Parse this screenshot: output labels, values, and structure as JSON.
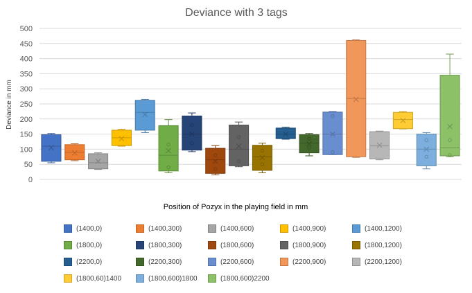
{
  "chart_data": {
    "type": "box",
    "title": "Deviance with 3 tags",
    "xlabel": "Position of Pozyx in the playing field in mm",
    "ylabel": "Deviance in mm",
    "ylim": [
      0,
      500
    ],
    "yticks": [
      0,
      50,
      100,
      150,
      200,
      250,
      300,
      350,
      400,
      450,
      500
    ],
    "grid": true,
    "legend_position": "bottom",
    "series": [
      {
        "name": "(1400,0)",
        "color": "#4472C4",
        "whisker_low": 55,
        "q1": 60,
        "median": 110,
        "q3": 148,
        "whisker_high": 152,
        "mean": 105,
        "points": []
      },
      {
        "name": "(1400,300)",
        "color": "#ED7D31",
        "whisker_low": 62,
        "q1": 65,
        "median": 90,
        "q3": 115,
        "whisker_high": 118,
        "mean": 88,
        "points": []
      },
      {
        "name": "(1400,600)",
        "color": "#A5A5A5",
        "whisker_low": 33,
        "q1": 35,
        "median": 55,
        "q3": 85,
        "whisker_high": 88,
        "mean": 60,
        "points": []
      },
      {
        "name": "(1400,900)",
        "color": "#FFC000",
        "whisker_low": 110,
        "q1": 112,
        "median": 138,
        "q3": 163,
        "whisker_high": 166,
        "mean": 135,
        "points": []
      },
      {
        "name": "(1400,1200)",
        "color": "#5B9BD5",
        "whisker_low": 155,
        "q1": 163,
        "median": 222,
        "q3": 262,
        "whisker_high": 265,
        "mean": 215,
        "points": []
      },
      {
        "name": "(1800,0)",
        "color": "#70AD47",
        "whisker_low": 22,
        "q1": 28,
        "median": 80,
        "q3": 178,
        "whisker_high": 198,
        "mean": 95,
        "points": [
          115,
          40
        ]
      },
      {
        "name": "(1800,300)",
        "color": "#264478",
        "whisker_low": 92,
        "q1": 97,
        "median": 150,
        "q3": 210,
        "whisker_high": 220,
        "mean": 150,
        "points": [
          180,
          120
        ]
      },
      {
        "name": "(1800,600)",
        "color": "#9E480E",
        "whisker_low": 15,
        "q1": 20,
        "median": 65,
        "q3": 103,
        "whisker_high": 112,
        "mean": 60,
        "points": [
          80,
          35
        ]
      },
      {
        "name": "(1800,900)",
        "color": "#636363",
        "whisker_low": 42,
        "q1": 45,
        "median": 100,
        "q3": 180,
        "whisker_high": 190,
        "mean": 110,
        "points": [
          140,
          60
        ]
      },
      {
        "name": "(1800,1200)",
        "color": "#997300",
        "whisker_low": 22,
        "q1": 30,
        "median": 75,
        "q3": 113,
        "whisker_high": 120,
        "mean": 72,
        "points": [
          95,
          50
        ]
      },
      {
        "name": "(2200,0)",
        "color": "#255E91",
        "whisker_low": 133,
        "q1": 135,
        "median": 150,
        "q3": 170,
        "whisker_high": 173,
        "mean": 150,
        "points": []
      },
      {
        "name": "(2200,300)",
        "color": "#43682B",
        "whisker_low": 78,
        "q1": 88,
        "median": 120,
        "q3": 148,
        "whisker_high": 152,
        "mean": 118,
        "points": [
          135,
          105
        ]
      },
      {
        "name": "(2200,600)",
        "color": "#698ED0",
        "whisker_low": 82,
        "q1": 82,
        "median": 150,
        "q3": 223,
        "whisker_high": 225,
        "mean": 150,
        "points": [
          210,
          90
        ]
      },
      {
        "name": "(2200,900)",
        "color": "#F1975A",
        "whisker_low": 73,
        "q1": 75,
        "median": 268,
        "q3": 460,
        "whisker_high": 462,
        "mean": 265,
        "points": []
      },
      {
        "name": "(2200,1200)",
        "color": "#B7B7B7",
        "whisker_low": 65,
        "q1": 68,
        "median": 112,
        "q3": 158,
        "whisker_high": 160,
        "mean": 113,
        "points": []
      },
      {
        "name": "(1800,60)1400",
        "color": "#FFCD33",
        "whisker_low": 167,
        "q1": 168,
        "median": 198,
        "q3": 222,
        "whisker_high": 225,
        "mean": 195,
        "points": []
      },
      {
        "name": "(1800,600)1800",
        "color": "#7CAFDD",
        "whisker_low": 35,
        "q1": 45,
        "median": 100,
        "q3": 150,
        "whisker_high": 155,
        "mean": 100,
        "points": [
          130,
          75
        ]
      },
      {
        "name": "(1800,600)2200",
        "color": "#8CC168",
        "whisker_low": 75,
        "q1": 78,
        "median": 105,
        "q3": 345,
        "whisker_high": 415,
        "mean": 175,
        "points": [
          130,
          80
        ]
      }
    ]
  }
}
